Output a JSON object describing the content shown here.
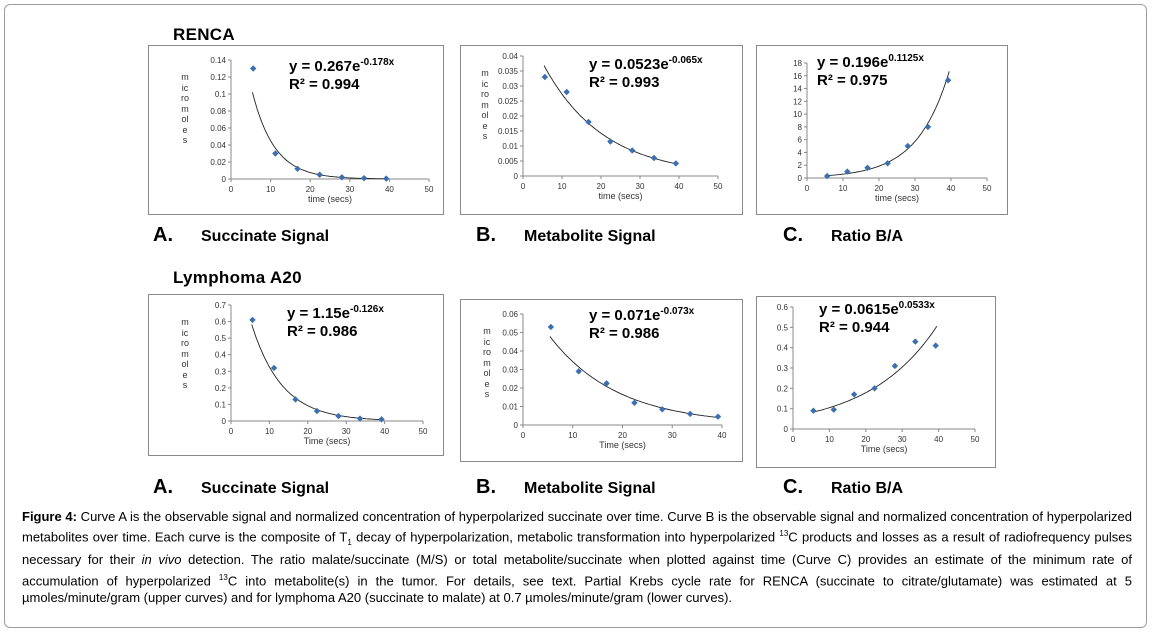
{
  "sections": [
    {
      "title": "RENCA"
    },
    {
      "title": "Lymphoma A20"
    }
  ],
  "panel_labels": [
    {
      "letter": "A.",
      "label": "Succinate Signal"
    },
    {
      "letter": "B.",
      "label": "Metabolite Signal"
    },
    {
      "letter": "C.",
      "label": "Ratio B/A"
    },
    {
      "letter": "A.",
      "label": "Succinate Signal"
    },
    {
      "letter": "B.",
      "label": "Metabolite Signal"
    },
    {
      "letter": "C.",
      "label": "Ratio B/A"
    }
  ],
  "chart_data": [
    {
      "type": "scatter",
      "ylabel": "micromoles",
      "xlabel": "time (secs)",
      "xlim": [
        0,
        50
      ],
      "xticks": [
        0,
        10,
        20,
        30,
        40,
        50
      ],
      "ylim": [
        0,
        0.14
      ],
      "yticks": [
        "0",
        "0.02",
        "0.04",
        "0.06",
        "0.08",
        "0.1",
        "0.12",
        "0.14"
      ],
      "x": [
        5.6,
        11.2,
        16.8,
        22.4,
        28,
        33.6,
        39.2
      ],
      "y": [
        0.13,
        0.03,
        0.012,
        0.005,
        0.002,
        0.001,
        0.0005
      ],
      "fit": {
        "a": 0.267,
        "b": -0.178
      },
      "equation": {
        "coef": "y = 0.267e",
        "exp": "-0.178x",
        "r2": "R² = 0.994"
      },
      "color": "#3b6fb0"
    },
    {
      "type": "scatter",
      "ylabel": "micromoles",
      "xlabel": "time (secs)",
      "xlim": [
        0,
        50
      ],
      "xticks": [
        0,
        10,
        20,
        30,
        40,
        50
      ],
      "ylim": [
        0,
        0.04
      ],
      "yticks": [
        "0",
        "0.005",
        "0.01",
        "0.015",
        "0.02",
        "0.025",
        "0.03",
        "0.035",
        "0.04"
      ],
      "x": [
        5.6,
        11.2,
        16.8,
        22.4,
        28,
        33.6,
        39.2
      ],
      "y": [
        0.033,
        0.028,
        0.018,
        0.0115,
        0.0085,
        0.006,
        0.0042
      ],
      "fit": {
        "a": 0.0523,
        "b": -0.065
      },
      "equation": {
        "coef": "y = 0.0523e",
        "exp": "-0.065x",
        "r2": "R² = 0.993"
      },
      "color": "#3b6fb0"
    },
    {
      "type": "scatter",
      "ylabel": "",
      "xlabel": "time (secs)",
      "xlim": [
        0,
        50
      ],
      "xticks": [
        0,
        10,
        20,
        30,
        40,
        50
      ],
      "ylim": [
        0,
        18
      ],
      "yticks": [
        "0",
        "2",
        "4",
        "6",
        "8",
        "10",
        "12",
        "14",
        "16",
        "18"
      ],
      "x": [
        5.6,
        11.2,
        16.8,
        22.4,
        28,
        33.6,
        39.2
      ],
      "y": [
        0.3,
        1.0,
        1.6,
        2.3,
        5.0,
        8.0,
        15.3
      ],
      "fit": {
        "a": 0.196,
        "b": 0.1125
      },
      "equation": {
        "coef": "y = 0.196e",
        "exp": "0.1125x",
        "r2": "R² = 0.975"
      },
      "color": "#3b6fb0"
    },
    {
      "type": "scatter",
      "ylabel": "micromoles",
      "xlabel": "Time (secs)",
      "xlim": [
        0,
        50
      ],
      "xticks": [
        0,
        10,
        20,
        30,
        40,
        50
      ],
      "ylim": [
        0,
        0.7
      ],
      "yticks": [
        "0",
        "0.1",
        "0.2",
        "0.3",
        "0.4",
        "0.5",
        "0.6",
        "0.7"
      ],
      "x": [
        5.6,
        11.2,
        16.8,
        22.4,
        28,
        33.6,
        39.2
      ],
      "y": [
        0.61,
        0.32,
        0.13,
        0.06,
        0.03,
        0.015,
        0.01
      ],
      "fit": {
        "a": 1.15,
        "b": -0.126
      },
      "equation": {
        "coef": "y = 1.15e",
        "exp": "-0.126x",
        "r2": "R² = 0.986"
      },
      "color": "#3b6fb0"
    },
    {
      "type": "scatter",
      "ylabel": "micromoles",
      "xlabel": "Time (secs)",
      "xlim": [
        0,
        40
      ],
      "xticks": [
        0,
        10,
        20,
        30,
        40
      ],
      "ylim": [
        0,
        0.06
      ],
      "yticks": [
        "0",
        "0.01",
        "0.02",
        "0.03",
        "0.04",
        "0.05",
        "0.06"
      ],
      "x": [
        5.6,
        11.2,
        16.8,
        22.4,
        28,
        33.6,
        39.2
      ],
      "y": [
        0.053,
        0.029,
        0.0225,
        0.012,
        0.0085,
        0.006,
        0.0045
      ],
      "fit": {
        "a": 0.071,
        "b": -0.073
      },
      "equation": {
        "coef": "y = 0.071e",
        "exp": "-0.073x",
        "r2": "R² = 0.986"
      },
      "color": "#3b6fb0"
    },
    {
      "type": "scatter",
      "ylabel": "",
      "xlabel": "Time (secs)",
      "xlim": [
        0,
        50
      ],
      "xticks": [
        0,
        10,
        20,
        30,
        40,
        50
      ],
      "ylim": [
        0,
        0.6
      ],
      "yticks": [
        "0",
        "0.1",
        "0.2",
        "0.3",
        "0.4",
        "0.5",
        "0.6"
      ],
      "x": [
        5.6,
        11.2,
        16.8,
        22.4,
        28,
        33.6,
        39.2
      ],
      "y": [
        0.09,
        0.095,
        0.17,
        0.2,
        0.31,
        0.43,
        0.41
      ],
      "fit": {
        "a": 0.0615,
        "b": 0.0533
      },
      "equation": {
        "coef": "y = 0.0615e",
        "exp": "0.0533x",
        "r2": "R² = 0.944"
      },
      "color": "#3b6fb0"
    }
  ],
  "caption": {
    "lead": "Figure 4:",
    "p1": " Curve A is the observable signal and normalized concentration of hyperpolarized succinate over time. Curve B is the observable signal and normalized concentration of hyperpolarized metabolites over time. Each curve is the composite of T",
    "sub1": "1",
    "p2": " decay of hyperpolarization, metabolic transformation into hyperpolarized ",
    "sup1": "13",
    "p3": "C products and losses as a result of radiofrequency pulses necessary for their ",
    "italic": "in vivo",
    "p4": " detection.  The ratio malate/succinate (M/S) or total metabolite/succinate when plotted against time (Curve C) provides an estimate of the minimum rate of accumulation of hyperpolarized ",
    "sup2": "13",
    "p5": "C into metabolite(s) in the tumor.  For details, see text. Partial Krebs cycle rate for RENCA (succinate to citrate/glutamate) was estimated at 5 µmoles/minute/gram (upper curves) and for lymphoma A20 (succinate to malate) at 0.7 µmoles/minute/gram (lower curves)."
  }
}
